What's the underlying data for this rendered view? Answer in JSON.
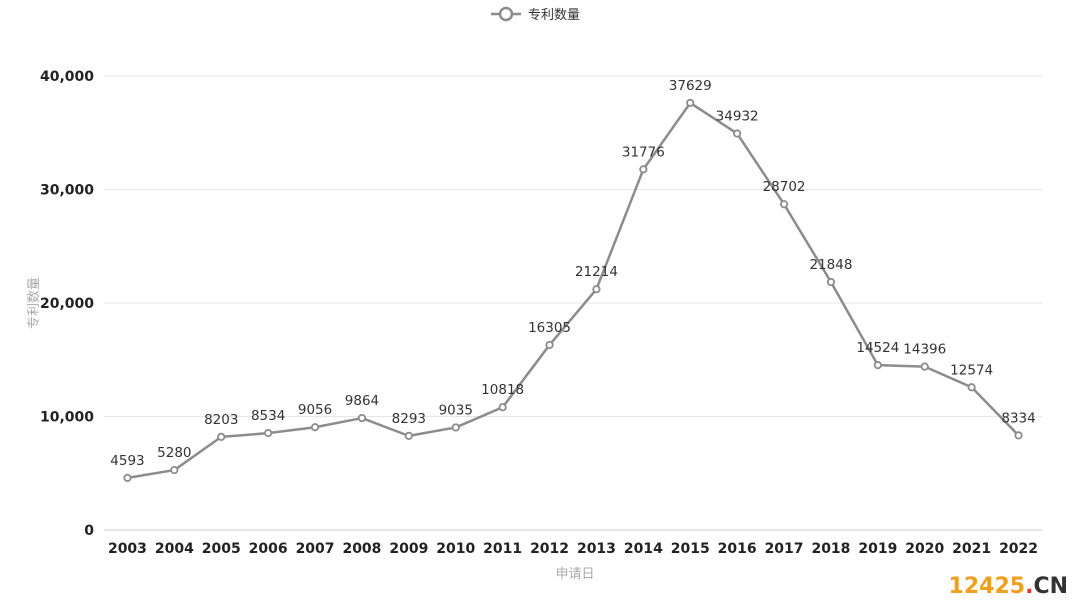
{
  "chart_data": {
    "type": "line",
    "legend": "专利数量",
    "legend_position": "top-center",
    "xlabel": "申请日",
    "ylabel": "专利数量",
    "ylim": [
      0,
      40000
    ],
    "yticks": [
      "0",
      "10,000",
      "20,000",
      "30,000",
      "40,000"
    ],
    "ytick_values": [
      0,
      10000,
      20000,
      30000,
      40000
    ],
    "grid": true,
    "categories": [
      "2003",
      "2004",
      "2005",
      "2006",
      "2007",
      "2008",
      "2009",
      "2010",
      "2011",
      "2012",
      "2013",
      "2014",
      "2015",
      "2016",
      "2017",
      "2018",
      "2019",
      "2020",
      "2021",
      "2022"
    ],
    "series": [
      {
        "name": "专利数量",
        "values": [
          4593,
          5280,
          8203,
          8534,
          9056,
          9864,
          8293,
          9035,
          10818,
          16305,
          21214,
          31776,
          37629,
          34932,
          28702,
          21848,
          14524,
          14396,
          12574,
          8334
        ]
      }
    ],
    "colors": {
      "line": "#8c8c8c",
      "grid": "#e6e6e6",
      "axis": "#cccccc"
    }
  },
  "watermark": {
    "num": "12425",
    "dot": ".",
    "cn": "CN"
  }
}
